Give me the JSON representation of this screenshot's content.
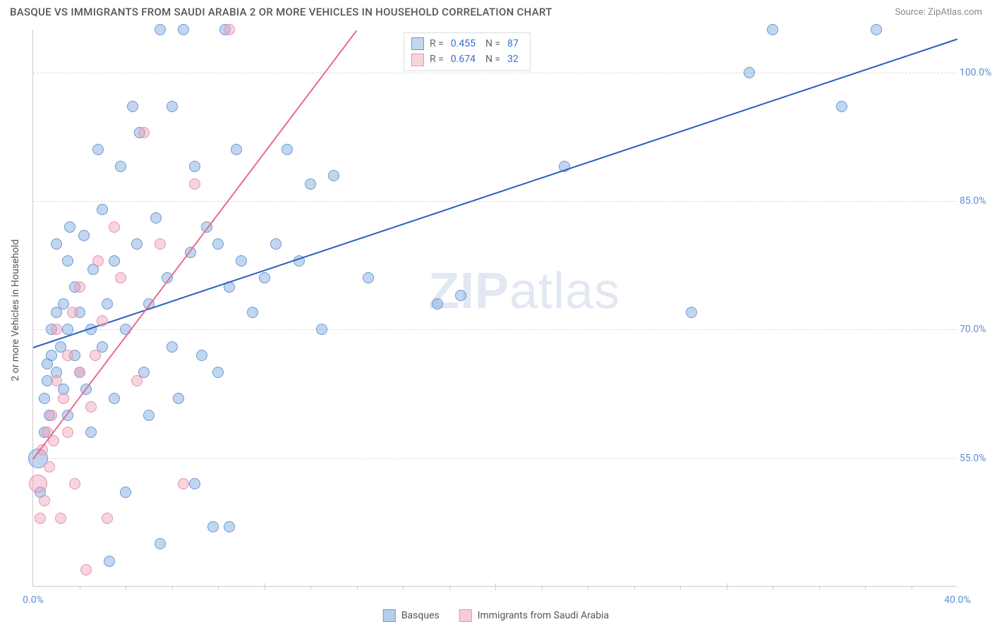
{
  "title": "BASQUE VS IMMIGRANTS FROM SAUDI ARABIA 2 OR MORE VEHICLES IN HOUSEHOLD CORRELATION CHART",
  "source": "Source: ZipAtlas.com",
  "y_axis_label": "2 or more Vehicles in Household",
  "watermark_bold": "ZIP",
  "watermark_rest": "atlas",
  "chart": {
    "type": "scatter",
    "background_color": "#ffffff",
    "grid_color": "#dddddd",
    "axis_color": "#cccccc",
    "tick_label_color": "#5b8fd6",
    "xlim": [
      0,
      40
    ],
    "ylim": [
      40,
      105
    ],
    "y_ticks": [
      {
        "value": 55.0,
        "label": "55.0%"
      },
      {
        "value": 70.0,
        "label": "70.0%"
      },
      {
        "value": 85.0,
        "label": "85.0%"
      },
      {
        "value": 100.0,
        "label": "100.0%"
      }
    ],
    "x_minor_ticks": [
      2,
      4,
      6,
      8,
      12,
      14,
      16,
      18,
      22,
      24,
      26,
      28,
      32,
      34,
      36,
      38
    ],
    "x_major_ticks": [
      10,
      20,
      30
    ],
    "x_labels": [
      {
        "value": 0,
        "label": "0.0%"
      },
      {
        "value": 40,
        "label": "40.0%"
      }
    ],
    "point_radius": 8,
    "series": [
      {
        "name": "Basques",
        "fill": "rgba(120,165,220,0.45)",
        "stroke": "#6a9ad4",
        "trend_color": "#2b5fc4",
        "R": "0.455",
        "N": "87",
        "trend": {
          "x1": 0,
          "y1": 68,
          "x2": 40,
          "y2": 104
        },
        "points": [
          {
            "x": 0.2,
            "y": 55,
            "r": 14
          },
          {
            "x": 0.3,
            "y": 51
          },
          {
            "x": 0.5,
            "y": 58
          },
          {
            "x": 0.5,
            "y": 62
          },
          {
            "x": 0.6,
            "y": 64
          },
          {
            "x": 0.6,
            "y": 66
          },
          {
            "x": 0.7,
            "y": 60
          },
          {
            "x": 0.8,
            "y": 70
          },
          {
            "x": 0.8,
            "y": 67
          },
          {
            "x": 1.0,
            "y": 80
          },
          {
            "x": 1.0,
            "y": 72
          },
          {
            "x": 1.0,
            "y": 65
          },
          {
            "x": 1.2,
            "y": 68
          },
          {
            "x": 1.3,
            "y": 63
          },
          {
            "x": 1.3,
            "y": 73
          },
          {
            "x": 1.5,
            "y": 78
          },
          {
            "x": 1.5,
            "y": 70
          },
          {
            "x": 1.5,
            "y": 60
          },
          {
            "x": 1.6,
            "y": 82
          },
          {
            "x": 1.8,
            "y": 75
          },
          {
            "x": 1.8,
            "y": 67
          },
          {
            "x": 2.0,
            "y": 72
          },
          {
            "x": 2.0,
            "y": 65
          },
          {
            "x": 2.2,
            "y": 81
          },
          {
            "x": 2.3,
            "y": 63
          },
          {
            "x": 2.5,
            "y": 70
          },
          {
            "x": 2.5,
            "y": 58
          },
          {
            "x": 2.6,
            "y": 77
          },
          {
            "x": 2.8,
            "y": 91
          },
          {
            "x": 3.0,
            "y": 68
          },
          {
            "x": 3.0,
            "y": 84
          },
          {
            "x": 3.2,
            "y": 73
          },
          {
            "x": 3.3,
            "y": 43
          },
          {
            "x": 3.5,
            "y": 62
          },
          {
            "x": 3.5,
            "y": 78
          },
          {
            "x": 3.8,
            "y": 89
          },
          {
            "x": 4.0,
            "y": 51
          },
          {
            "x": 4.0,
            "y": 70
          },
          {
            "x": 4.3,
            "y": 96
          },
          {
            "x": 4.5,
            "y": 80
          },
          {
            "x": 4.6,
            "y": 93
          },
          {
            "x": 4.8,
            "y": 65
          },
          {
            "x": 5.0,
            "y": 73
          },
          {
            "x": 5.0,
            "y": 60
          },
          {
            "x": 5.3,
            "y": 83
          },
          {
            "x": 5.5,
            "y": 45
          },
          {
            "x": 5.5,
            "y": 105
          },
          {
            "x": 5.8,
            "y": 76
          },
          {
            "x": 6.0,
            "y": 96
          },
          {
            "x": 6.0,
            "y": 68
          },
          {
            "x": 6.3,
            "y": 62
          },
          {
            "x": 6.5,
            "y": 105
          },
          {
            "x": 6.8,
            "y": 79
          },
          {
            "x": 7.0,
            "y": 89
          },
          {
            "x": 7.0,
            "y": 52
          },
          {
            "x": 7.3,
            "y": 67
          },
          {
            "x": 7.5,
            "y": 82
          },
          {
            "x": 7.8,
            "y": 47
          },
          {
            "x": 8.0,
            "y": 80
          },
          {
            "x": 8.0,
            "y": 65
          },
          {
            "x": 8.3,
            "y": 105
          },
          {
            "x": 8.5,
            "y": 75
          },
          {
            "x": 8.5,
            "y": 47
          },
          {
            "x": 8.8,
            "y": 91
          },
          {
            "x": 9.0,
            "y": 78
          },
          {
            "x": 9.5,
            "y": 72
          },
          {
            "x": 10.0,
            "y": 76
          },
          {
            "x": 10.5,
            "y": 80
          },
          {
            "x": 11.0,
            "y": 91
          },
          {
            "x": 11.5,
            "y": 78
          },
          {
            "x": 12.0,
            "y": 87
          },
          {
            "x": 12.5,
            "y": 70
          },
          {
            "x": 13.0,
            "y": 88
          },
          {
            "x": 14.5,
            "y": 76
          },
          {
            "x": 17.5,
            "y": 73
          },
          {
            "x": 18.5,
            "y": 74
          },
          {
            "x": 23.0,
            "y": 89
          },
          {
            "x": 28.5,
            "y": 72
          },
          {
            "x": 31.0,
            "y": 100
          },
          {
            "x": 32.0,
            "y": 105
          },
          {
            "x": 35.0,
            "y": 96
          },
          {
            "x": 36.5,
            "y": 105
          }
        ]
      },
      {
        "name": "Immigrants from Saudi Arabia",
        "fill": "rgba(240,160,185,0.45)",
        "stroke": "#e594b0",
        "trend_color": "#e76a95",
        "R": "0.674",
        "N": "32",
        "trend": {
          "x1": 0,
          "y1": 55,
          "x2": 14,
          "y2": 105
        },
        "points": [
          {
            "x": 0.2,
            "y": 52,
            "r": 13
          },
          {
            "x": 0.3,
            "y": 48
          },
          {
            "x": 0.4,
            "y": 56
          },
          {
            "x": 0.5,
            "y": 50
          },
          {
            "x": 0.6,
            "y": 58
          },
          {
            "x": 0.7,
            "y": 54
          },
          {
            "x": 0.8,
            "y": 60
          },
          {
            "x": 0.9,
            "y": 57
          },
          {
            "x": 1.0,
            "y": 64
          },
          {
            "x": 1.0,
            "y": 70
          },
          {
            "x": 1.2,
            "y": 48
          },
          {
            "x": 1.3,
            "y": 62
          },
          {
            "x": 1.5,
            "y": 67
          },
          {
            "x": 1.5,
            "y": 58
          },
          {
            "x": 1.7,
            "y": 72
          },
          {
            "x": 1.8,
            "y": 52
          },
          {
            "x": 2.0,
            "y": 65
          },
          {
            "x": 2.0,
            "y": 75
          },
          {
            "x": 2.3,
            "y": 42
          },
          {
            "x": 2.5,
            "y": 61
          },
          {
            "x": 2.7,
            "y": 67
          },
          {
            "x": 2.8,
            "y": 78
          },
          {
            "x": 3.0,
            "y": 71
          },
          {
            "x": 3.2,
            "y": 48
          },
          {
            "x": 3.5,
            "y": 82
          },
          {
            "x": 3.8,
            "y": 76
          },
          {
            "x": 4.5,
            "y": 64
          },
          {
            "x": 4.8,
            "y": 93
          },
          {
            "x": 5.5,
            "y": 80
          },
          {
            "x": 6.5,
            "y": 52
          },
          {
            "x": 7.0,
            "y": 87
          },
          {
            "x": 8.5,
            "y": 105
          }
        ]
      }
    ]
  },
  "legend": [
    {
      "label": "Basques",
      "fill": "rgba(120,165,220,0.55)",
      "border": "#6a9ad4"
    },
    {
      "label": "Immigrants from Saudi Arabia",
      "fill": "rgba(240,160,185,0.55)",
      "border": "#e594b0"
    }
  ]
}
